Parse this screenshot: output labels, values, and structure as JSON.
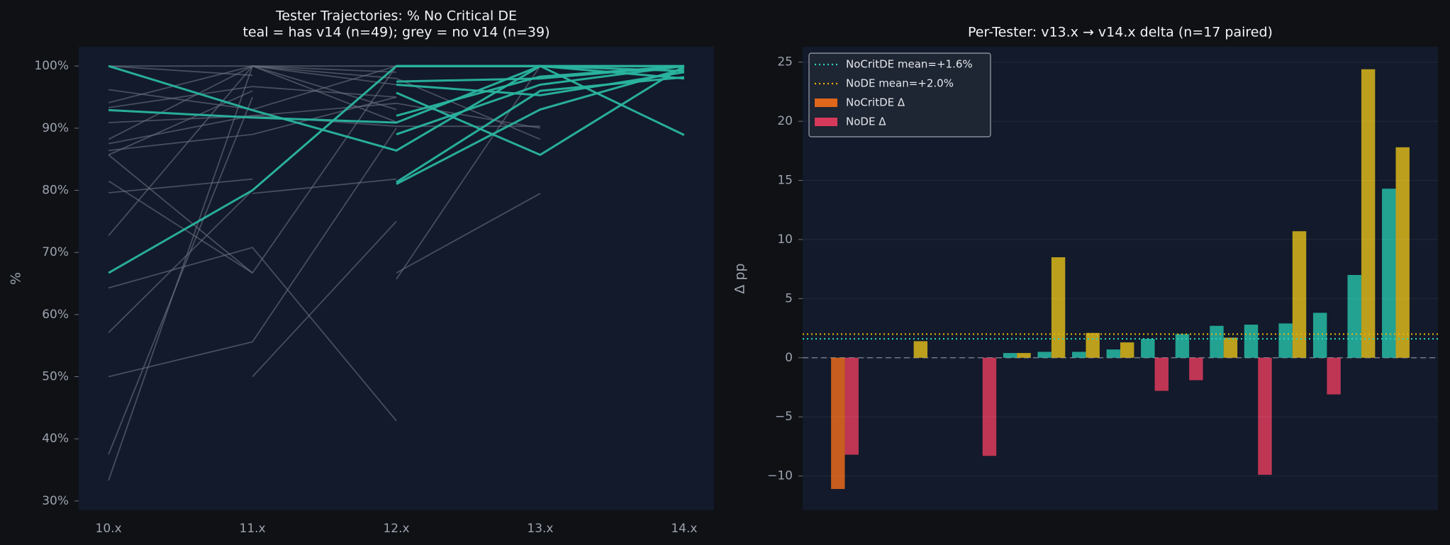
{
  "chart_data": [
    {
      "type": "line",
      "title": "Tester Trajectories: % No Critical DE",
      "subtitle": "teal = has v14 (n=49); grey = no v14 (n=39)",
      "y_label": "%",
      "categories": [
        "10.x",
        "11.x",
        "12.x",
        "13.x",
        "14.x"
      ],
      "ylim": [
        28.5,
        103.1
      ],
      "yticks": [
        {
          "value": 30,
          "label": "30%"
        },
        {
          "value": 40,
          "label": "40%"
        },
        {
          "value": 50,
          "label": "50%"
        },
        {
          "value": 60,
          "label": "60%"
        },
        {
          "value": 70,
          "label": "70%"
        },
        {
          "value": 80,
          "label": "80%"
        },
        {
          "value": 90,
          "label": "90%"
        },
        {
          "value": 100,
          "label": "100%"
        }
      ],
      "grid": false,
      "series": [
        {
          "color": "#6b7280",
          "values": [
            33.3,
            100,
            97,
            null,
            null
          ]
        },
        {
          "color": "#6b7280",
          "values": [
            37.5,
            95,
            null,
            null,
            null
          ]
        },
        {
          "color": "#6b7280",
          "values": [
            50,
            55.6,
            90,
            null,
            null
          ]
        },
        {
          "color": "#6b7280",
          "values": [
            57.1,
            80,
            100,
            null,
            null
          ]
        },
        {
          "color": "#6b7280",
          "values": [
            64.3,
            70.8,
            42.9,
            null,
            null
          ]
        },
        {
          "color": "#6b7280",
          "values": [
            72.7,
            100,
            93,
            null,
            null
          ]
        },
        {
          "color": "#6b7280",
          "values": [
            79.6,
            81.8,
            null,
            null,
            null
          ]
        },
        {
          "color": "#6b7280",
          "values": [
            81.5,
            66.7,
            100,
            null,
            null
          ]
        },
        {
          "color": "#6b7280",
          "values": [
            85.7,
            66.7,
            null,
            null,
            null
          ]
        },
        {
          "color": "#6b7280",
          "values": [
            86.4,
            89,
            95,
            null,
            null
          ]
        },
        {
          "color": "#6b7280",
          "values": [
            87.5,
            92,
            94,
            90,
            null
          ]
        },
        {
          "color": "#6b7280",
          "values": [
            88.2,
            100,
            98,
            88.2,
            null
          ]
        },
        {
          "color": "#6b7280",
          "values": [
            90.9,
            92,
            90.3,
            90.3,
            null
          ]
        },
        {
          "color": "#6b7280",
          "values": [
            93.3,
            96.7,
            95,
            null,
            null
          ]
        },
        {
          "color": "#6b7280",
          "values": [
            94.1,
            100,
            100,
            null,
            null
          ]
        },
        {
          "color": "#6b7280",
          "values": [
            96.2,
            93,
            100,
            null,
            null
          ]
        },
        {
          "color": "#6b7280",
          "values": [
            100,
            100,
            99,
            null,
            null
          ]
        },
        {
          "color": "#6b7280",
          "values": [
            null,
            50,
            75,
            null,
            null
          ]
        },
        {
          "color": "#6b7280",
          "values": [
            null,
            79.5,
            81.8,
            null,
            null
          ]
        },
        {
          "color": "#6b7280",
          "values": [
            null,
            null,
            66.7,
            79.5,
            null
          ]
        },
        {
          "color": "#6b7280",
          "values": [
            null,
            null,
            65.7,
            100,
            null
          ]
        },
        {
          "color": "#6b7280",
          "values": [
            85.7,
            96,
            null,
            null,
            null
          ]
        },
        {
          "color": "#6b7280",
          "values": [
            100,
            98.5,
            null,
            null,
            null
          ]
        },
        {
          "color": "#6b7280",
          "values": [
            null,
            100,
            91,
            null,
            null
          ]
        },
        {
          "color": "#2ab5a0",
          "values": [
            100,
            92.9,
            86.4,
            100,
            98
          ]
        },
        {
          "color": "#2ab5a0",
          "values": [
            92.9,
            91.7,
            90.9,
            100,
            100
          ]
        },
        {
          "color": "#2ab5a0",
          "values": [
            66.7,
            80,
            100,
            100,
            100
          ]
        },
        {
          "color": "#2ab5a0",
          "values": [
            null,
            null,
            100,
            100,
            99.2
          ]
        },
        {
          "color": "#2ab5a0",
          "values": [
            null,
            null,
            97.5,
            98,
            100
          ]
        },
        {
          "color": "#2ab5a0",
          "values": [
            null,
            null,
            95.7,
            85.7,
            100
          ]
        },
        {
          "color": "#2ab5a0",
          "values": [
            null,
            null,
            81,
            93,
            99.6
          ]
        },
        {
          "color": "#2ab5a0",
          "values": [
            null,
            null,
            81.3,
            96,
            98.2
          ]
        },
        {
          "color": "#2ab5a0",
          "values": [
            null,
            null,
            89,
            97,
            100
          ]
        },
        {
          "color": "#2ab5a0",
          "values": [
            null,
            null,
            100,
            100,
            88.9
          ]
        },
        {
          "color": "#2ab5a0",
          "values": [
            null,
            null,
            97,
            95.3,
            99
          ]
        },
        {
          "color": "#2ab5a0",
          "values": [
            null,
            null,
            92,
            98.3,
            100
          ]
        }
      ]
    },
    {
      "type": "bar",
      "title": "Per-Tester: v13.x → v14.x delta (n=17 paired)",
      "y_label": "Δ pp",
      "categories": [
        null,
        null,
        null,
        null,
        null,
        null,
        null,
        null,
        null,
        null,
        null,
        null,
        null,
        null,
        null,
        null,
        null
      ],
      "ylim": [
        -12.9,
        26.3
      ],
      "yticks": [
        {
          "value": -10,
          "label": "−10"
        },
        {
          "value": -5,
          "label": "−5"
        },
        0,
        5,
        10,
        15,
        20,
        25
      ],
      "grid": true,
      "legend": "upper left",
      "reference_lines": [
        {
          "label": "NoCritDE mean=+1.6%",
          "value": 1.6,
          "color": "#2dd4bf"
        },
        {
          "label": "NoDE mean=+2.0%",
          "value": 2.0,
          "color": "#eab308"
        }
      ],
      "series": [
        {
          "name": "NoCritDE Δ",
          "color": "#e0671c",
          "positive_color": "#26b5a0",
          "values": [
            -11.1,
            0,
            0,
            0,
            0,
            0.4,
            0.5,
            0.5,
            0.7,
            1.6,
            2.0,
            2.7,
            2.8,
            2.9,
            3.8,
            7.0,
            14.3
          ]
        },
        {
          "name": "NoDE Δ",
          "color": "#d63a5a",
          "positive_color": "#d4b21a",
          "values": [
            -8.2,
            0,
            1.4,
            0,
            -8.3,
            0.4,
            8.5,
            2.1,
            1.3,
            -2.8,
            -1.9,
            1.7,
            -9.9,
            10.7,
            -3.1,
            24.4,
            17.8
          ]
        }
      ]
    }
  ]
}
